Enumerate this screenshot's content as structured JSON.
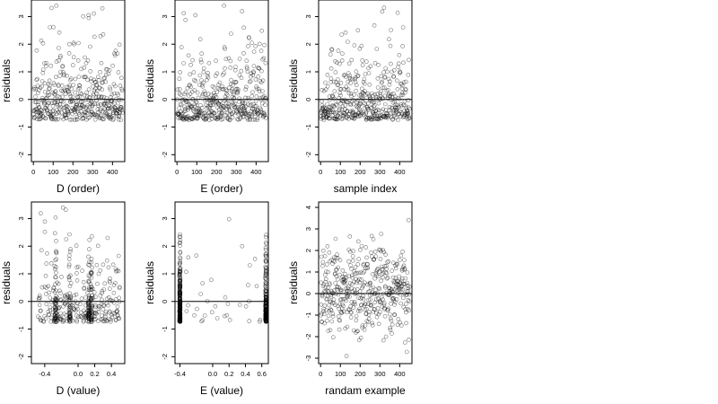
{
  "chart_data": [
    {
      "type": "scatter",
      "xlabel": "D (order)",
      "ylabel": "residuals",
      "xlim": [
        -10,
        462
      ],
      "ylim": [
        -2.25,
        3.6
      ],
      "xticks": [
        0,
        100,
        200,
        300,
        400
      ],
      "yticks": [
        -2,
        -1,
        0,
        1,
        2,
        3
      ],
      "xtick_labels": [
        "0",
        "100",
        "200",
        "300",
        "400"
      ],
      "ytick_labels": [
        "-2",
        "-1",
        "0",
        "1",
        "2",
        "3"
      ],
      "hline": 0,
      "pattern": "index",
      "seed": 11,
      "n": 450,
      "x": [],
      "y": []
    },
    {
      "type": "scatter",
      "xlabel": "E (order)",
      "ylabel": "residuals",
      "xlim": [
        -10,
        462
      ],
      "ylim": [
        -2.25,
        3.6
      ],
      "xticks": [
        0,
        100,
        200,
        300,
        400
      ],
      "yticks": [
        -2,
        -1,
        0,
        1,
        2,
        3
      ],
      "xtick_labels": [
        "0",
        "100",
        "200",
        "300",
        "400"
      ],
      "ytick_labels": [
        "-2",
        "-1",
        "0",
        "1",
        "2",
        "3"
      ],
      "hline": 0,
      "pattern": "index",
      "seed": 23,
      "n": 450,
      "x": [],
      "y": []
    },
    {
      "type": "scatter",
      "xlabel": "sample index",
      "ylabel": "residuals",
      "xlim": [
        -10,
        462
      ],
      "ylim": [
        -2.25,
        3.6
      ],
      "xticks": [
        0,
        100,
        200,
        300,
        400
      ],
      "yticks": [
        -2,
        -1,
        0,
        1,
        2,
        3
      ],
      "xtick_labels": [
        "0",
        "100",
        "200",
        "300",
        "400"
      ],
      "ytick_labels": [
        "-2",
        "-1",
        "0",
        "1",
        "2",
        "3"
      ],
      "hline": 0,
      "pattern": "index",
      "seed": 37,
      "n": 450,
      "x": [],
      "y": []
    },
    {
      "type": "scatter",
      "xlabel": "D (value)",
      "ylabel": "residuals",
      "xlim": [
        -0.56,
        0.56
      ],
      "ylim": [
        -2.25,
        3.6
      ],
      "xticks": [
        -0.4,
        0.0,
        0.2,
        0.4
      ],
      "yticks": [
        -2,
        -1,
        0,
        1,
        2,
        3
      ],
      "xtick_labels": [
        "-0.4",
        "0.0",
        "0.2",
        "0.4"
      ],
      "ytick_labels": [
        "-2",
        "-1",
        "0",
        "1",
        "2",
        "3"
      ],
      "hline": 0,
      "pattern": "dvalue",
      "seed": 41,
      "n": 450,
      "x": [],
      "y": []
    },
    {
      "type": "scatter",
      "xlabel": "E (value)",
      "ylabel": "residuals",
      "xlim": [
        -0.46,
        0.68
      ],
      "ylim": [
        -2.25,
        3.6
      ],
      "xticks": [
        -0.4,
        0.0,
        0.2,
        0.4,
        0.6
      ],
      "yticks": [
        -2,
        -1,
        0,
        1,
        2,
        3
      ],
      "xtick_labels": [
        "-0.4",
        "0.0",
        "0.2",
        "0.4",
        "0.6"
      ],
      "ytick_labels": [
        "-2",
        "-1",
        "0",
        "1",
        "2",
        "3"
      ],
      "hline": 0,
      "pattern": "evalue",
      "seed": 53,
      "n": 450,
      "x": [],
      "y": []
    },
    {
      "type": "scatter",
      "xlabel": "randam example",
      "ylabel": "residuals",
      "xlim": [
        -10,
        462
      ],
      "ylim": [
        -3.25,
        4.25
      ],
      "xticks": [
        0,
        100,
        200,
        300,
        400
      ],
      "yticks": [
        -3,
        -2,
        -1,
        0,
        1,
        2,
        3,
        4
      ],
      "xtick_labels": [
        "0",
        "100",
        "200",
        "300",
        "400"
      ],
      "ytick_labels": [
        "-3",
        "-2",
        "-1",
        "0",
        "1",
        "2",
        "3",
        "4"
      ],
      "hline": 0,
      "pattern": "normal",
      "seed": 67,
      "n": 450,
      "x": [],
      "y": []
    }
  ]
}
